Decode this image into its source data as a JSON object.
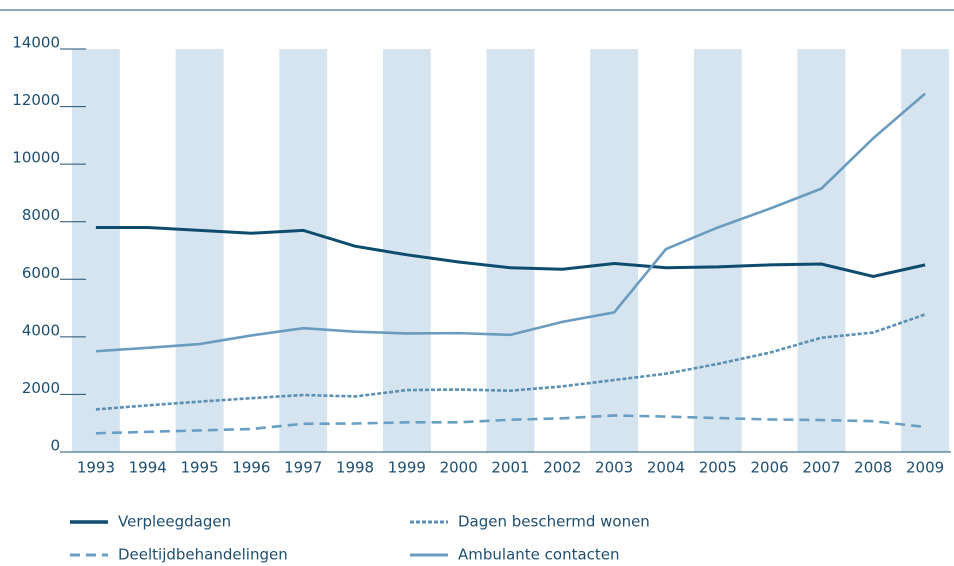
{
  "chart_data": {
    "type": "line",
    "categories": [
      "1993",
      "1994",
      "1995",
      "1996",
      "1997",
      "1998",
      "1999",
      "2000",
      "2001",
      "2002",
      "2003",
      "2004",
      "2005",
      "2006",
      "2007",
      "2008",
      "2009"
    ],
    "series": [
      {
        "name": "Verpleegdagen",
        "color": "#0e4c6e",
        "line_style": "solid",
        "values": [
          7800,
          7800,
          7700,
          7600,
          7700,
          7150,
          6850,
          6600,
          6400,
          6350,
          6550,
          6400,
          6430,
          6500,
          6530,
          6100,
          6500
        ]
      },
      {
        "name": "Dagen beschermd wonen",
        "color": "#5b90b5",
        "line_style": "dotted",
        "values": [
          1480,
          1620,
          1750,
          1870,
          1980,
          1930,
          2150,
          2170,
          2130,
          2280,
          2500,
          2720,
          3060,
          3450,
          3970,
          4150,
          4780
        ]
      },
      {
        "name": "Deeltijdbehandelingen",
        "color": "#6a9fc4",
        "line_style": "dashed",
        "values": [
          650,
          700,
          750,
          800,
          980,
          990,
          1030,
          1030,
          1120,
          1170,
          1270,
          1230,
          1180,
          1130,
          1110,
          1070,
          870
        ]
      },
      {
        "name": "Ambulante contacten",
        "color": "#6a9cbf",
        "line_style": "solid",
        "values": [
          3500,
          3620,
          3750,
          4050,
          4300,
          4180,
          4120,
          4130,
          4070,
          4520,
          4850,
          7050,
          7800,
          8450,
          9150,
          10900,
          12450
        ]
      }
    ],
    "ylim": [
      0,
      14000
    ],
    "yticks": [
      0,
      2000,
      4000,
      6000,
      8000,
      10000,
      12000,
      14000
    ],
    "band_color": "#d5e4ee"
  }
}
